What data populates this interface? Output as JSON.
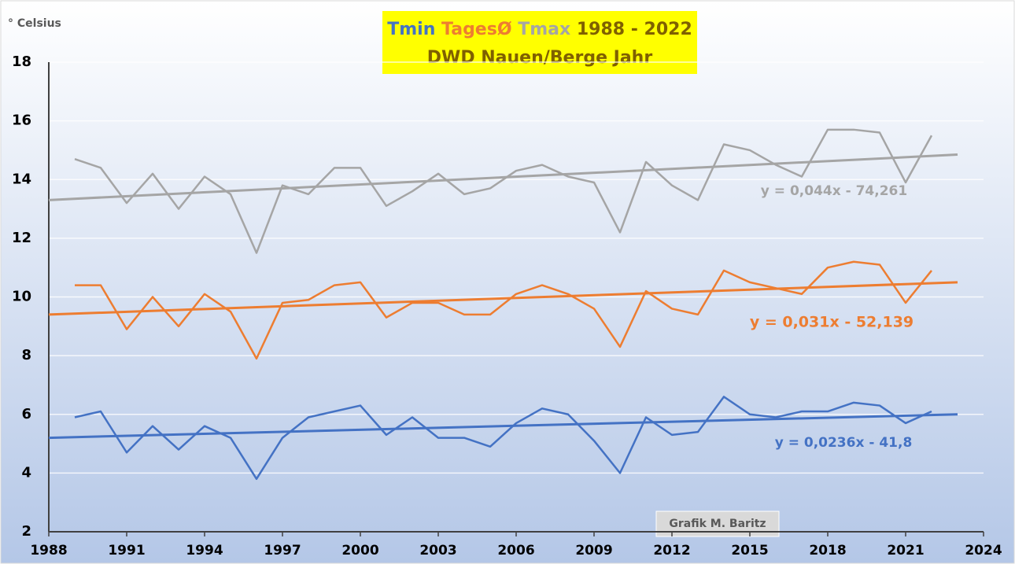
{
  "chart_data": {
    "type": "line",
    "title": "1988 - 2022",
    "subtitle": "DWD Nauen/Berge Jahr",
    "y_label": "° Celsius",
    "annotations": [
      "Grafik M. Baritz"
    ],
    "x": [
      1989,
      1990,
      1991,
      1992,
      1993,
      1994,
      1995,
      1996,
      1997,
      1998,
      1999,
      2000,
      2001,
      2002,
      2003,
      2004,
      2005,
      2006,
      2007,
      2008,
      2009,
      2010,
      2011,
      2012,
      2013,
      2014,
      2015,
      2016,
      2017,
      2018,
      2019,
      2020,
      2021,
      2022
    ],
    "series": [
      {
        "name": "Tmax",
        "color": "#a5a5a5",
        "values": [
          14.7,
          14.4,
          13.2,
          14.2,
          13.0,
          14.1,
          13.5,
          11.5,
          13.8,
          13.5,
          14.4,
          14.4,
          13.1,
          13.6,
          14.2,
          13.5,
          13.7,
          14.3,
          14.5,
          14.1,
          13.9,
          12.2,
          14.6,
          13.8,
          13.3,
          15.2,
          15.0,
          14.5,
          14.1,
          15.7,
          15.7,
          15.6,
          13.9,
          15.5
        ],
        "trend": {
          "x": [
            1988,
            2023
          ],
          "values": [
            13.3,
            14.85
          ],
          "equation": "y = 0,044x - 74,261"
        }
      },
      {
        "name": "TagesØ",
        "color": "#ed7d31",
        "values": [
          10.4,
          10.4,
          8.9,
          10.0,
          9.0,
          10.1,
          9.5,
          7.9,
          9.8,
          9.9,
          10.4,
          10.5,
          9.3,
          9.8,
          9.8,
          9.4,
          9.4,
          10.1,
          10.4,
          10.1,
          9.6,
          8.3,
          10.2,
          9.6,
          9.4,
          10.9,
          10.5,
          10.3,
          10.1,
          11.0,
          11.2,
          11.1,
          9.8,
          10.9
        ],
        "trend": {
          "x": [
            1988,
            2023
          ],
          "values": [
            9.4,
            10.5
          ],
          "equation": "y = 0,031x - 52,139"
        }
      },
      {
        "name": "Tmin",
        "color": "#4472c4",
        "values": [
          5.9,
          6.1,
          4.7,
          5.6,
          4.8,
          5.6,
          5.2,
          3.8,
          5.2,
          5.9,
          6.1,
          6.3,
          5.3,
          5.9,
          5.2,
          5.2,
          4.9,
          5.7,
          6.2,
          6.0,
          5.1,
          4.0,
          5.9,
          5.3,
          5.4,
          6.6,
          6.0,
          5.9,
          6.1,
          6.1,
          6.4,
          6.3,
          5.7,
          6.1
        ],
        "trend": {
          "x": [
            1988,
            2023
          ],
          "values": [
            5.2,
            6.0
          ],
          "equation": "y = 0,0236x - 41,8"
        }
      }
    ],
    "xlim": [
      1988,
      2024
    ],
    "xticks": [
      1988,
      1991,
      1994,
      1997,
      2000,
      2003,
      2006,
      2009,
      2012,
      2015,
      2018,
      2021,
      2024
    ],
    "ylim": [
      2,
      18
    ],
    "yticks": [
      2,
      4,
      6,
      8,
      10,
      12,
      14,
      16,
      18
    ],
    "grid": true
  }
}
